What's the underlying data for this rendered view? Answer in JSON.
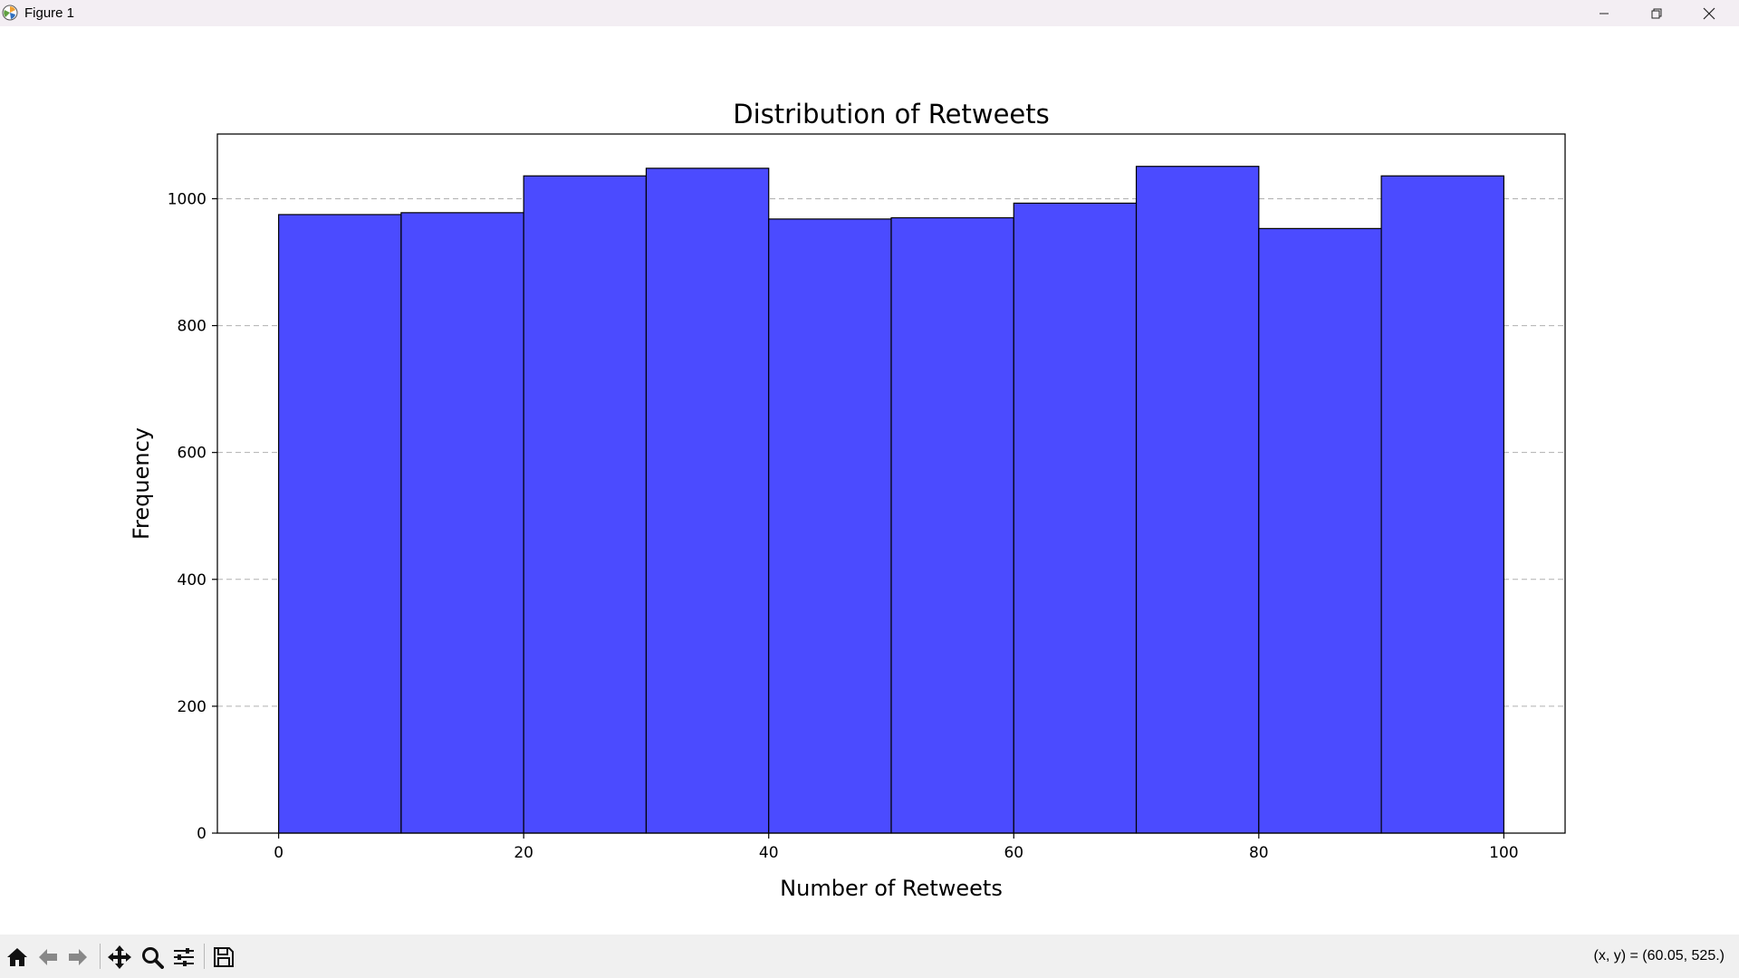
{
  "window": {
    "title": "Figure 1",
    "icons": [
      "matplotlib-icon",
      "minimize-icon",
      "maximize-icon",
      "close-icon"
    ]
  },
  "toolbar": {
    "buttons": [
      "home-icon",
      "back-icon",
      "forward-icon",
      "pan-icon",
      "zoom-icon",
      "configure-subplots-icon",
      "save-icon"
    ],
    "coords": "(x, y) = (60.05, 525.)"
  },
  "colors": {
    "bar_fill": "#4b4bff",
    "bar_edge": "#000000",
    "grid": "#b0b0b0",
    "titlebar": "#f3eef3",
    "toolbar": "#f0f0f0"
  },
  "chart_data": {
    "type": "bar",
    "subtype": "histogram",
    "title": "Distribution of Retweets",
    "xlabel": "Number of Retweets",
    "ylabel": "Frequency",
    "bin_edges": [
      0,
      10,
      20,
      30,
      40,
      50,
      60,
      70,
      80,
      90,
      100
    ],
    "values": [
      975,
      978,
      1036,
      1048,
      968,
      970,
      993,
      1051,
      953,
      1036
    ],
    "xlim": [
      -5,
      105
    ],
    "ylim": [
      0,
      1102
    ],
    "xticks": [
      0,
      20,
      40,
      60,
      80,
      100
    ],
    "xtick_labels": [
      "0",
      "20",
      "40",
      "60",
      "80",
      "100"
    ],
    "yticks": [
      0,
      200,
      400,
      600,
      800,
      1000
    ],
    "ytick_labels": [
      "0",
      "200",
      "400",
      "600",
      "800",
      "1000"
    ],
    "grid": "y-axis dashed"
  }
}
